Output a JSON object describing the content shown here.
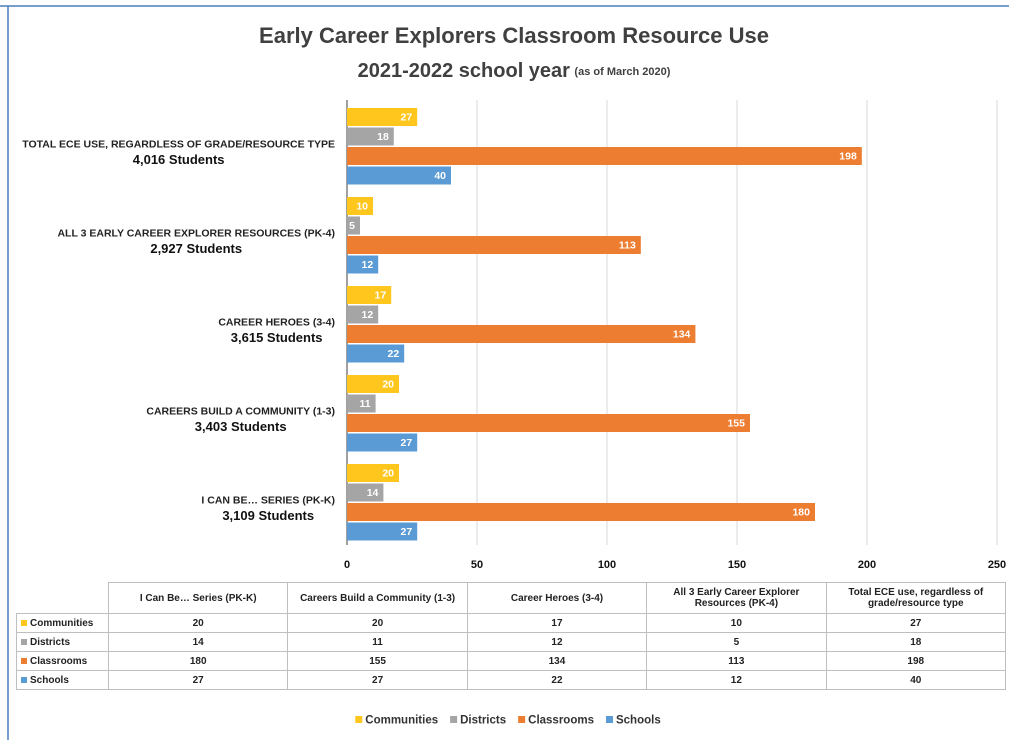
{
  "chart_data": {
    "type": "bar",
    "orientation": "horizontal",
    "title": "Early Career Explorers Classroom Resource Use",
    "subtitle": "2021-2022 school year",
    "subtitle_note": "(as of March 2020)",
    "categories": [
      "I Can Be… Series (PK-K)",
      "Careers Build a Community (1-3)",
      "Career Heroes (3-4)",
      "All 3 Early Career Explorer Resources (PK-4)",
      "Total ECE use, regardless of grade/resource type"
    ],
    "category_axis_labels": [
      {
        "name": "I CAN BE… SERIES (PK-K)",
        "students": "3,109 Students"
      },
      {
        "name": "CAREERS BUILD A COMMUNITY (1-3)",
        "students": "3,403 Students"
      },
      {
        "name": "CAREER HEROES (3-4)",
        "students": "3,615 Students"
      },
      {
        "name": "ALL 3 EARLY CAREER EXPLORER RESOURCES (PK-4)",
        "students": "2,927 Students"
      },
      {
        "name": "TOTAL ECE USE, REGARDLESS OF GRADE/RESOURCE TYPE",
        "students": "4,016 Students"
      }
    ],
    "series": [
      {
        "name": "Communities",
        "color": "#ffc61e",
        "values": [
          20,
          20,
          17,
          10,
          27
        ]
      },
      {
        "name": "Districts",
        "color": "#a5a5a5",
        "values": [
          14,
          11,
          12,
          5,
          18
        ]
      },
      {
        "name": "Classrooms",
        "color": "#ed7d31",
        "values": [
          180,
          155,
          134,
          113,
          198
        ]
      },
      {
        "name": "Schools",
        "color": "#5b9bd5",
        "values": [
          27,
          27,
          22,
          12,
          40
        ]
      }
    ],
    "xlim": [
      0,
      250
    ],
    "xticks": [
      0,
      50,
      100,
      150,
      200,
      250
    ],
    "grid": true,
    "legend": "bottom",
    "data_table": true
  }
}
